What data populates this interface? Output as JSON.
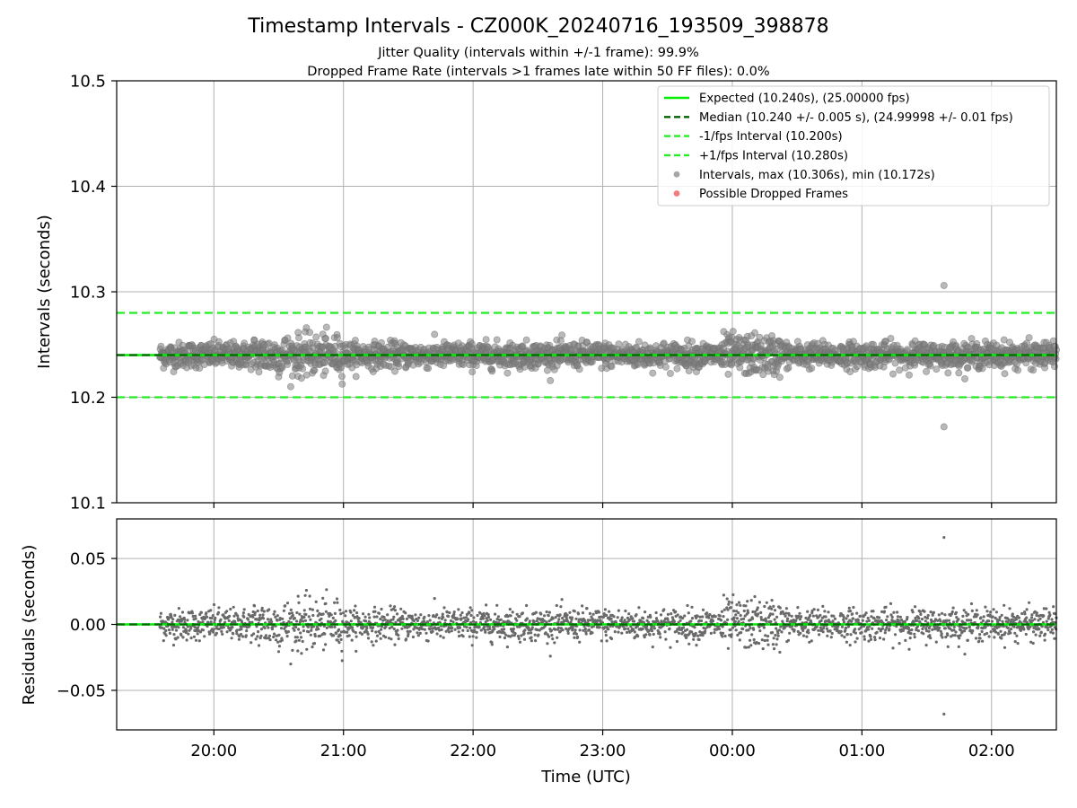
{
  "chart_data": [
    {
      "type": "scatter",
      "title": "Timestamp Intervals - CZ000K_20240716_193509_398878",
      "subtitle_lines": [
        "Jitter Quality (intervals within +/-1 frame): 99.9%",
        "Dropped Frame Rate (intervals >1 frames late within 50 FF files): 0.0%"
      ],
      "xlabel": "",
      "ylabel": "Intervals (seconds)",
      "ylim": [
        10.1,
        10.5
      ],
      "y_ticks": [
        10.1,
        10.2,
        10.3,
        10.4,
        10.5
      ],
      "y_tick_labels": [
        "10.1",
        "10.2",
        "10.3",
        "10.4",
        "10.5"
      ],
      "xlim_hours": [
        19.25,
        26.5
      ],
      "x_ticks_hours": [
        20,
        21,
        22,
        23,
        24,
        25,
        26
      ],
      "x_tick_labels": [
        "20:00",
        "21:00",
        "22:00",
        "23:00",
        "00:00",
        "01:00",
        "02:00"
      ],
      "grid": true,
      "legend_position": "top-right",
      "reference_lines": [
        {
          "name": "Expected (10.240s), (25.00000 fps)",
          "y": 10.24,
          "color": "#00ee00",
          "style": "solid"
        },
        {
          "name": "Median (10.240 +/- 0.005 s), (24.99998 +/- 0.01 fps)",
          "y": 10.24,
          "color": "#006400",
          "style": "dashed"
        },
        {
          "name": "-1/fps Interval (10.200s)",
          "y": 10.2,
          "color": "#22ee22",
          "style": "dashed"
        },
        {
          "name": "+1/fps Interval (10.280s)",
          "y": 10.28,
          "color": "#22ee22",
          "style": "dashed"
        }
      ],
      "series": [
        {
          "name": "Intervals, max (10.306s), min (10.172s)",
          "color": "#808080",
          "x_start_time": "19:35",
          "x_end_time": "02:30",
          "median": 10.24,
          "max": 10.306,
          "min": 10.172,
          "outliers": [
            {
              "x": "01:38",
              "y": 10.306
            },
            {
              "x": "01:38",
              "y": 10.172
            }
          ]
        },
        {
          "name": "Possible Dropped Frames",
          "color": "#ee4444",
          "points": []
        }
      ]
    },
    {
      "type": "scatter",
      "xlabel": "Time (UTC)",
      "ylabel": "Residuals (seconds)",
      "ylim": [
        -0.08,
        0.08
      ],
      "y_ticks": [
        -0.05,
        0.0,
        0.05
      ],
      "y_tick_labels": [
        "−0.05",
        "0.00",
        "0.05"
      ],
      "xlim_hours": [
        19.25,
        26.5
      ],
      "x_ticks_hours": [
        20,
        21,
        22,
        23,
        24,
        25,
        26
      ],
      "x_tick_labels": [
        "20:00",
        "21:00",
        "22:00",
        "23:00",
        "00:00",
        "01:00",
        "02:00"
      ],
      "grid": true,
      "series": [
        {
          "color": "#696969",
          "max": 0.066,
          "min": -0.068,
          "outliers": [
            {
              "x": "01:38",
              "y": 0.066
            },
            {
              "x": "01:38",
              "y": -0.068
            }
          ]
        }
      ]
    }
  ]
}
